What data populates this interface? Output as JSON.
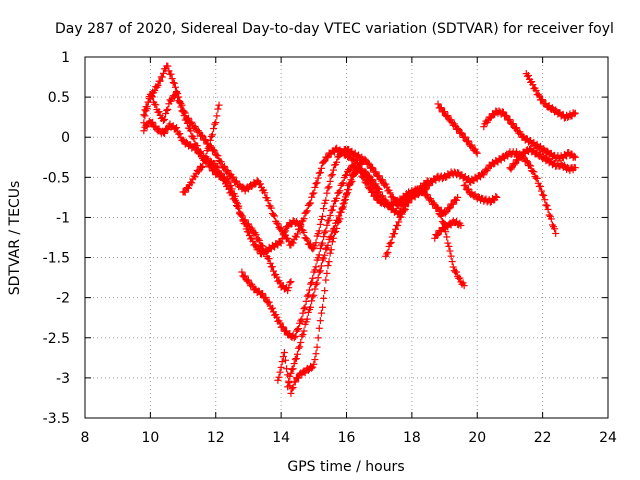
{
  "chart_data": {
    "type": "scatter",
    "title": "Day 287 of 2020, Sidereal Day-to-day VTEC variation (SDTVAR) for receiver foyl",
    "xlabel": "GPS time / hours",
    "ylabel": "SDTVAR / TECUs",
    "xlim": [
      8,
      24
    ],
    "ylim": [
      -3.5,
      1
    ],
    "xticks": [
      "8",
      "10",
      "12",
      "14",
      "16",
      "18",
      "20",
      "22",
      "24"
    ],
    "yticks": [
      "1",
      "0.5",
      "0",
      "-0.5",
      "-1",
      "-1.5",
      "-2",
      "-2.5",
      "-3",
      "-3.5"
    ],
    "grid": true,
    "marker": "+",
    "color": "#ff0000",
    "series": [
      {
        "points": [
          [
            9.8,
            0.3
          ],
          [
            10.0,
            0.5
          ],
          [
            10.3,
            0.7
          ],
          [
            10.5,
            0.9
          ],
          [
            10.7,
            0.7
          ],
          [
            10.9,
            0.45
          ],
          [
            11.1,
            0.25
          ],
          [
            11.3,
            0.15
          ],
          [
            11.5,
            0.05
          ],
          [
            11.8,
            -0.1
          ],
          [
            12.0,
            -0.2
          ],
          [
            12.2,
            -0.35
          ],
          [
            12.5,
            -0.5
          ],
          [
            12.7,
            -0.6
          ],
          [
            12.9,
            -0.65
          ],
          [
            13.1,
            -0.6
          ],
          [
            13.3,
            -0.55
          ],
          [
            13.5,
            -0.7
          ],
          [
            13.7,
            -0.9
          ],
          [
            13.9,
            -1.1
          ],
          [
            14.1,
            -1.2
          ],
          [
            14.3,
            -1.35
          ],
          [
            14.5,
            -1.2
          ],
          [
            14.7,
            -1.0
          ],
          [
            14.9,
            -0.8
          ],
          [
            15.1,
            -0.55
          ],
          [
            15.3,
            -0.3
          ],
          [
            15.5,
            -0.2
          ],
          [
            15.7,
            -0.15
          ],
          [
            15.9,
            -0.2
          ],
          [
            16.1,
            -0.25
          ],
          [
            16.3,
            -0.3
          ],
          [
            16.5,
            -0.5
          ],
          [
            16.8,
            -0.7
          ],
          [
            17.0,
            -0.8
          ],
          [
            17.3,
            -0.85
          ],
          [
            17.6,
            -0.8
          ],
          [
            17.9,
            -0.7
          ],
          [
            18.2,
            -0.65
          ],
          [
            18.5,
            -0.55
          ]
        ]
      },
      {
        "points": [
          [
            9.8,
            0.2
          ],
          [
            10.0,
            0.55
          ],
          [
            10.2,
            0.35
          ],
          [
            10.4,
            0.2
          ],
          [
            10.6,
            0.45
          ],
          [
            10.8,
            0.55
          ],
          [
            11.0,
            0.3
          ],
          [
            11.2,
            0.1
          ],
          [
            11.4,
            -0.1
          ],
          [
            11.6,
            -0.25
          ],
          [
            11.8,
            -0.35
          ],
          [
            12.0,
            -0.45
          ],
          [
            12.2,
            -0.5
          ],
          [
            12.4,
            -0.55
          ],
          [
            12.6,
            -0.75
          ],
          [
            12.8,
            -1.0
          ],
          [
            13.0,
            -1.2
          ],
          [
            13.2,
            -1.35
          ],
          [
            13.4,
            -1.45
          ],
          [
            13.6,
            -1.4
          ],
          [
            13.8,
            -1.35
          ],
          [
            14.0,
            -1.3
          ],
          [
            14.2,
            -1.1
          ],
          [
            14.4,
            -1.05
          ],
          [
            14.6,
            -1.1
          ],
          [
            14.8,
            -1.3
          ],
          [
            15.0,
            -1.4
          ],
          [
            15.2,
            -1.1
          ],
          [
            15.4,
            -0.7
          ],
          [
            15.6,
            -0.4
          ],
          [
            15.8,
            -0.2
          ],
          [
            16.0,
            -0.15
          ],
          [
            16.2,
            -0.2
          ],
          [
            16.4,
            -0.25
          ],
          [
            16.6,
            -0.3
          ],
          [
            16.8,
            -0.4
          ],
          [
            17.0,
            -0.5
          ],
          [
            17.2,
            -0.6
          ],
          [
            17.4,
            -0.75
          ],
          [
            17.6,
            -0.85
          ],
          [
            17.8,
            -0.8
          ],
          [
            18.0,
            -0.7
          ],
          [
            18.2,
            -0.65
          ],
          [
            18.4,
            -0.7
          ],
          [
            18.6,
            -0.8
          ],
          [
            18.8,
            -0.9
          ],
          [
            19.0,
            -0.95
          ],
          [
            19.2,
            -0.85
          ],
          [
            19.4,
            -0.75
          ]
        ]
      },
      {
        "points": [
          [
            9.8,
            0.1
          ],
          [
            10.0,
            0.2
          ],
          [
            10.2,
            0.1
          ],
          [
            10.4,
            0.05
          ],
          [
            10.6,
            0.15
          ],
          [
            10.8,
            0.1
          ],
          [
            11.0,
            -0.05
          ],
          [
            11.2,
            -0.1
          ],
          [
            11.4,
            -0.15
          ],
          [
            11.6,
            -0.25
          ],
          [
            11.8,
            -0.3
          ],
          [
            12.0,
            -0.35
          ],
          [
            12.2,
            -0.5
          ],
          [
            12.4,
            -0.65
          ],
          [
            12.6,
            -0.8
          ],
          [
            12.8,
            -1.0
          ],
          [
            13.0,
            -1.1
          ],
          [
            13.2,
            -1.2
          ],
          [
            13.4,
            -1.35
          ],
          [
            13.6,
            -1.5
          ],
          [
            13.8,
            -1.7
          ],
          [
            14.0,
            -1.85
          ],
          [
            14.2,
            -1.9
          ],
          [
            14.3,
            -1.8
          ]
        ]
      },
      {
        "points": [
          [
            12.8,
            -1.7
          ],
          [
            13.0,
            -1.8
          ],
          [
            13.2,
            -1.9
          ],
          [
            13.4,
            -1.95
          ],
          [
            13.6,
            -2.05
          ],
          [
            13.8,
            -2.2
          ],
          [
            14.0,
            -2.35
          ],
          [
            14.2,
            -2.45
          ],
          [
            14.4,
            -2.5
          ],
          [
            14.6,
            -2.3
          ],
          [
            14.8,
            -2.0
          ],
          [
            15.0,
            -1.7
          ],
          [
            15.2,
            -1.4
          ],
          [
            15.4,
            -1.1
          ],
          [
            15.6,
            -0.85
          ],
          [
            15.8,
            -0.65
          ],
          [
            16.0,
            -0.45
          ],
          [
            16.2,
            -0.35
          ],
          [
            16.4,
            -0.4
          ],
          [
            16.6,
            -0.5
          ],
          [
            16.8,
            -0.6
          ],
          [
            17.0,
            -0.7
          ],
          [
            17.2,
            -0.8
          ],
          [
            17.4,
            -0.9
          ],
          [
            17.6,
            -0.95
          ],
          [
            17.8,
            -0.9
          ]
        ]
      },
      {
        "points": [
          [
            13.9,
            -3.05
          ],
          [
            14.0,
            -2.85
          ],
          [
            14.1,
            -2.7
          ],
          [
            14.2,
            -2.95
          ],
          [
            14.3,
            -3.2
          ],
          [
            14.4,
            -3.05
          ],
          [
            14.6,
            -2.95
          ],
          [
            14.8,
            -2.9
          ],
          [
            15.0,
            -2.85
          ],
          [
            15.1,
            -2.6
          ],
          [
            15.2,
            -2.3
          ],
          [
            15.3,
            -2.0
          ],
          [
            15.4,
            -1.7
          ],
          [
            15.5,
            -1.45
          ],
          [
            15.6,
            -1.25
          ],
          [
            15.8,
            -1.0
          ],
          [
            16.0,
            -0.7
          ],
          [
            16.2,
            -0.45
          ],
          [
            16.4,
            -0.4
          ],
          [
            16.6,
            -0.45
          ],
          [
            16.8,
            -0.55
          ],
          [
            17.0,
            -0.65
          ]
        ]
      },
      {
        "points": [
          [
            14.2,
            -3.1
          ],
          [
            14.3,
            -2.95
          ],
          [
            14.5,
            -2.7
          ],
          [
            14.7,
            -2.4
          ],
          [
            14.9,
            -2.1
          ],
          [
            15.1,
            -1.8
          ],
          [
            15.3,
            -1.5
          ],
          [
            15.5,
            -1.25
          ],
          [
            15.7,
            -1.05
          ],
          [
            15.9,
            -0.85
          ],
          [
            16.1,
            -0.6
          ],
          [
            16.3,
            -0.4
          ],
          [
            16.5,
            -0.3
          ]
        ]
      },
      {
        "points": [
          [
            17.2,
            -1.5
          ],
          [
            17.4,
            -1.25
          ],
          [
            17.6,
            -1.05
          ],
          [
            17.8,
            -0.85
          ],
          [
            18.0,
            -0.75
          ],
          [
            18.2,
            -0.7
          ],
          [
            18.4,
            -0.65
          ],
          [
            18.6,
            -0.55
          ],
          [
            18.8,
            -0.5
          ],
          [
            19.0,
            -0.5
          ],
          [
            19.2,
            -0.45
          ],
          [
            19.4,
            -0.45
          ],
          [
            19.6,
            -0.5
          ],
          [
            19.8,
            -0.55
          ],
          [
            20.0,
            -0.5
          ],
          [
            20.2,
            -0.45
          ],
          [
            20.4,
            -0.35
          ],
          [
            20.6,
            -0.3
          ],
          [
            20.8,
            -0.25
          ],
          [
            21.0,
            -0.2
          ],
          [
            21.2,
            -0.2
          ],
          [
            21.4,
            -0.25
          ],
          [
            21.6,
            -0.35
          ],
          [
            21.8,
            -0.5
          ],
          [
            22.0,
            -0.7
          ],
          [
            22.2,
            -0.95
          ],
          [
            22.4,
            -1.2
          ]
        ]
      },
      {
        "points": [
          [
            18.8,
            0.4
          ],
          [
            19.0,
            0.3
          ],
          [
            19.2,
            0.2
          ],
          [
            19.4,
            0.1
          ],
          [
            19.6,
            0.0
          ],
          [
            19.8,
            -0.1
          ],
          [
            20.0,
            -0.2
          ]
        ]
      },
      {
        "points": [
          [
            20.2,
            0.15
          ],
          [
            20.4,
            0.25
          ],
          [
            20.6,
            0.32
          ],
          [
            20.8,
            0.3
          ],
          [
            21.0,
            0.2
          ],
          [
            21.2,
            0.1
          ],
          [
            21.4,
            0.0
          ],
          [
            21.6,
            -0.05
          ],
          [
            21.8,
            -0.1
          ],
          [
            22.0,
            -0.15
          ],
          [
            22.2,
            -0.2
          ],
          [
            22.4,
            -0.25
          ],
          [
            22.6,
            -0.25
          ],
          [
            22.8,
            -0.2
          ],
          [
            23.0,
            -0.25
          ]
        ]
      },
      {
        "points": [
          [
            21.5,
            0.8
          ],
          [
            21.7,
            0.65
          ],
          [
            21.9,
            0.5
          ],
          [
            22.1,
            0.4
          ],
          [
            22.3,
            0.35
          ],
          [
            22.5,
            0.3
          ],
          [
            22.7,
            0.25
          ],
          [
            22.9,
            0.28
          ],
          [
            23.0,
            0.3
          ]
        ]
      },
      {
        "points": [
          [
            21.0,
            -0.4
          ],
          [
            21.2,
            -0.3
          ],
          [
            21.4,
            -0.2
          ],
          [
            21.6,
            -0.15
          ],
          [
            21.8,
            -0.2
          ],
          [
            22.0,
            -0.25
          ],
          [
            22.2,
            -0.3
          ],
          [
            22.4,
            -0.35
          ],
          [
            22.6,
            -0.35
          ],
          [
            22.8,
            -0.4
          ],
          [
            23.0,
            -0.38
          ]
        ]
      },
      {
        "points": [
          [
            18.7,
            -1.25
          ],
          [
            18.9,
            -1.15
          ],
          [
            19.1,
            -1.1
          ],
          [
            19.3,
            -1.05
          ],
          [
            19.5,
            -1.1
          ]
        ]
      },
      {
        "points": [
          [
            18.8,
            -0.9
          ],
          [
            19.0,
            -1.1
          ],
          [
            19.1,
            -1.3
          ],
          [
            19.2,
            -1.5
          ],
          [
            19.3,
            -1.65
          ],
          [
            19.5,
            -1.8
          ],
          [
            19.6,
            -1.85
          ]
        ]
      },
      {
        "points": [
          [
            19.6,
            -0.6
          ],
          [
            19.8,
            -0.7
          ],
          [
            20.0,
            -0.75
          ],
          [
            20.2,
            -0.78
          ],
          [
            20.4,
            -0.8
          ],
          [
            20.6,
            -0.75
          ]
        ]
      },
      {
        "points": [
          [
            11.0,
            -0.7
          ],
          [
            11.2,
            -0.6
          ],
          [
            11.4,
            -0.45
          ],
          [
            11.6,
            -0.35
          ],
          [
            11.8,
            -0.1
          ],
          [
            12.0,
            0.2
          ],
          [
            12.1,
            0.4
          ]
        ]
      }
    ]
  }
}
